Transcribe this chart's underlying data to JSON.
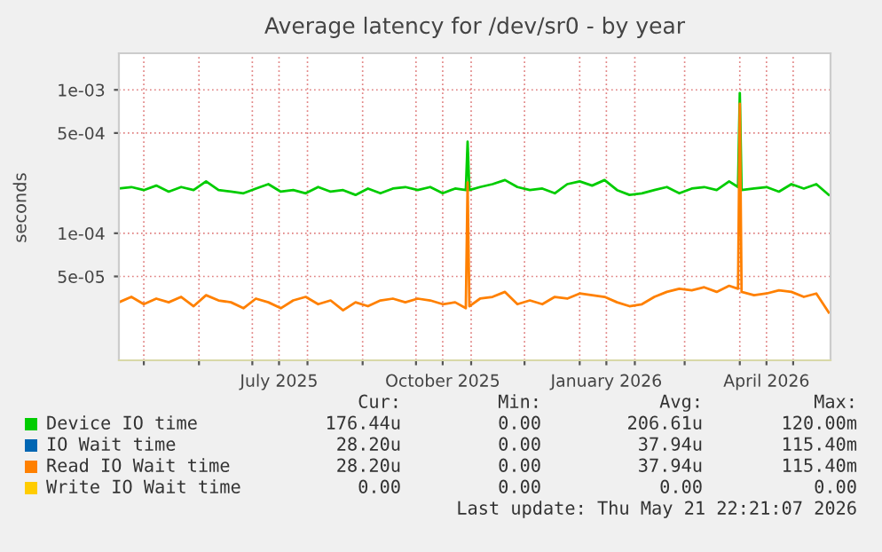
{
  "chart_data": {
    "type": "line",
    "title": "Average latency for /dev/sr0 - by year",
    "ylabel": "seconds",
    "log": "y",
    "x": [
      "2025-04-17",
      "2025-04-24",
      "2025-05-01",
      "2025-05-08",
      "2025-05-15",
      "2025-05-22",
      "2025-05-29",
      "2025-06-05",
      "2025-06-12",
      "2025-06-19",
      "2025-06-26",
      "2025-07-03",
      "2025-07-10",
      "2025-07-17",
      "2025-07-24",
      "2025-07-31",
      "2025-08-07",
      "2025-08-14",
      "2025-08-21",
      "2025-08-28",
      "2025-09-04",
      "2025-09-11",
      "2025-09-18",
      "2025-09-25",
      "2025-10-02",
      "2025-10-09",
      "2025-10-16",
      "2025-10-23",
      "2025-10-29",
      "2025-10-30",
      "2025-10-31",
      "2025-11-06",
      "2025-11-13",
      "2025-11-20",
      "2025-11-27",
      "2025-12-04",
      "2025-12-11",
      "2025-12-18",
      "2025-12-25",
      "2026-01-01",
      "2026-01-08",
      "2026-01-15",
      "2026-01-22",
      "2026-01-29",
      "2026-02-05",
      "2026-02-12",
      "2026-02-19",
      "2026-02-26",
      "2026-03-05",
      "2026-03-12",
      "2026-03-19",
      "2026-03-26",
      "2026-03-31",
      "2026-04-01",
      "2026-04-02",
      "2026-04-09",
      "2026-04-16",
      "2026-04-23",
      "2026-04-30",
      "2026-05-07",
      "2026-05-14",
      "2026-05-21"
    ],
    "series": [
      {
        "name": "Device IO time",
        "color": "#00cc00",
        "values": [
          0.000205,
          0.00021,
          0.0002,
          0.000215,
          0.000195,
          0.00021,
          0.0002,
          0.00023,
          0.0002,
          0.000195,
          0.00019,
          0.000205,
          0.00022,
          0.000195,
          0.0002,
          0.00019,
          0.00021,
          0.000195,
          0.0002,
          0.000185,
          0.000205,
          0.00019,
          0.000205,
          0.00021,
          0.0002,
          0.00021,
          0.00019,
          0.000205,
          0.0002,
          0.000435,
          0.0002,
          0.00021,
          0.00022,
          0.000235,
          0.00021,
          0.0002,
          0.000205,
          0.00019,
          0.00022,
          0.00023,
          0.000215,
          0.000235,
          0.0002,
          0.000185,
          0.00019,
          0.0002,
          0.00021,
          0.00019,
          0.000205,
          0.00021,
          0.0002,
          0.00023,
          0.00021,
          0.00095,
          0.0002,
          0.000205,
          0.00021,
          0.000195,
          0.00022,
          0.000205,
          0.00022,
          0.000185
        ]
      },
      {
        "name": "IO Wait time",
        "color": "#0066b3",
        "values": [
          null,
          null,
          null,
          null,
          null,
          null,
          null,
          null,
          null,
          null,
          null,
          null,
          null,
          null,
          null,
          null,
          null,
          null,
          null,
          null,
          null,
          null,
          null,
          null,
          null,
          null,
          null,
          null,
          null,
          null,
          null,
          null,
          null,
          null,
          null,
          null,
          null,
          null,
          null,
          null,
          null,
          null,
          null,
          null,
          null,
          null,
          null,
          null,
          null,
          null,
          null,
          null,
          null,
          null,
          null,
          null,
          null,
          null,
          null,
          null,
          null,
          null
        ]
      },
      {
        "name": "Read IO Wait time",
        "color": "#ff8000",
        "values": [
          3.3e-05,
          3.6e-05,
          3.2e-05,
          3.5e-05,
          3.3e-05,
          3.6e-05,
          3.1e-05,
          3.7e-05,
          3.4e-05,
          3.3e-05,
          3e-05,
          3.5e-05,
          3.3e-05,
          3e-05,
          3.4e-05,
          3.6e-05,
          3.2e-05,
          3.4e-05,
          2.9e-05,
          3.3e-05,
          3.1e-05,
          3.4e-05,
          3.5e-05,
          3.3e-05,
          3.5e-05,
          3.4e-05,
          3.2e-05,
          3.3e-05,
          3e-05,
          0.000226,
          3.1e-05,
          3.5e-05,
          3.6e-05,
          3.9e-05,
          3.2e-05,
          3.4e-05,
          3.2e-05,
          3.6e-05,
          3.5e-05,
          3.8e-05,
          3.7e-05,
          3.6e-05,
          3.3e-05,
          3.1e-05,
          3.2e-05,
          3.6e-05,
          3.9e-05,
          4.1e-05,
          4e-05,
          4.2e-05,
          3.9e-05,
          4.3e-05,
          4.1e-05,
          0.0008,
          3.9e-05,
          3.7e-05,
          3.8e-05,
          4e-05,
          3.9e-05,
          3.6e-05,
          3.8e-05,
          2.8e-05
        ]
      },
      {
        "name": "Write IO Wait time",
        "color": "#ffcc00",
        "values": [
          null,
          null,
          null,
          null,
          null,
          null,
          null,
          null,
          null,
          null,
          null,
          null,
          null,
          null,
          null,
          null,
          null,
          null,
          null,
          null,
          null,
          null,
          null,
          null,
          null,
          null,
          null,
          null,
          null,
          null,
          null,
          null,
          null,
          null,
          null,
          null,
          null,
          null,
          null,
          null,
          null,
          null,
          null,
          null,
          null,
          null,
          null,
          null,
          null,
          null,
          null,
          null,
          null,
          null,
          null,
          null,
          null,
          null,
          null,
          null,
          null,
          null
        ]
      }
    ],
    "xlim": [
      "2025-04-17",
      "2026-05-22"
    ],
    "xticks": [
      {
        "value": "2025-05-01",
        "label": null
      },
      {
        "value": "2025-06-01",
        "label": null
      },
      {
        "value": "2025-07-01",
        "label": null
      },
      {
        "value": "2025-07-16",
        "label": "July 2025"
      },
      {
        "value": "2025-08-01",
        "label": null
      },
      {
        "value": "2025-09-01",
        "label": null
      },
      {
        "value": "2025-10-01",
        "label": null
      },
      {
        "value": "2025-10-16",
        "label": "October 2025"
      },
      {
        "value": "2025-11-01",
        "label": null
      },
      {
        "value": "2025-12-01",
        "label": null
      },
      {
        "value": "2026-01-01",
        "label": null
      },
      {
        "value": "2026-01-16",
        "label": "January 2026"
      },
      {
        "value": "2026-02-01",
        "label": null
      },
      {
        "value": "2026-03-01",
        "label": null
      },
      {
        "value": "2026-04-01",
        "label": null
      },
      {
        "value": "2026-04-16",
        "label": "April 2026"
      },
      {
        "value": "2026-05-01",
        "label": null
      }
    ],
    "ylim": [
      1.3e-05,
      0.0018
    ],
    "yticks": [
      {
        "value": 5e-05,
        "label": "5e-05"
      },
      {
        "value": 0.0001,
        "label": "1e-04"
      },
      {
        "value": 0.0005,
        "label": "5e-04"
      },
      {
        "value": 0.001,
        "label": "1e-03"
      }
    ],
    "grid": true,
    "legend": "bottom",
    "line_style": "solid",
    "marker": "none",
    "annotations": [
      "Cur:",
      "Min:",
      "Avg:",
      "Max:",
      "176.44u",
      "0.00",
      "206.61u",
      "120.00m",
      "28.20u",
      "0.00",
      "37.94u",
      "115.40m",
      "28.20u",
      "0.00",
      "37.94u",
      "115.40m",
      "0.00",
      "0.00",
      "0.00",
      "0.00",
      "Last update: Thu May 21 22:21:07 2026"
    ]
  }
}
